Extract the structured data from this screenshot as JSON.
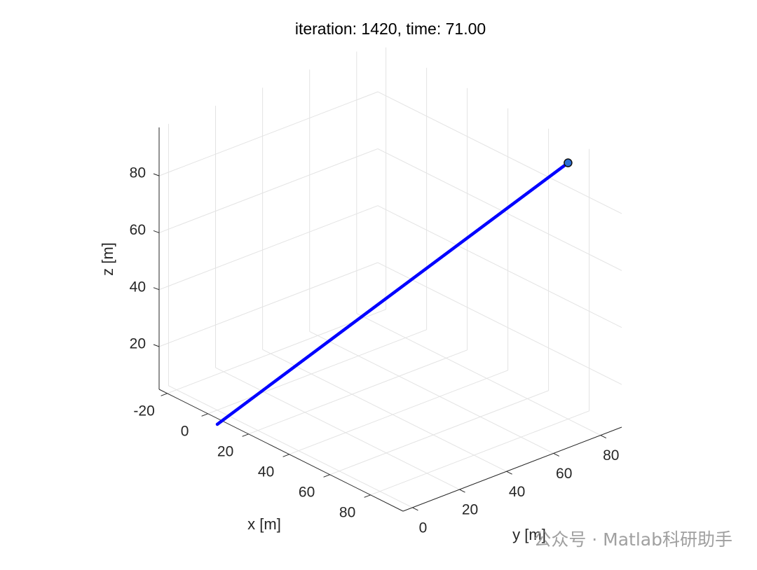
{
  "chart_data": {
    "type": "line3d",
    "title": "iteration: 1420, time: 71.00",
    "xlabel": "x [m]",
    "ylabel": "y [m]",
    "zlabel": "z [m]",
    "xlim": [
      -24,
      96
    ],
    "ylim": [
      -4,
      89
    ],
    "zlim": [
      5,
      97
    ],
    "xticks": [
      -20,
      0,
      20,
      40,
      60,
      80
    ],
    "yticks": [
      0,
      20,
      40,
      60,
      80
    ],
    "zticks": [
      20,
      40,
      60,
      80
    ],
    "grid": true,
    "series": [
      {
        "color": "#0000ff",
        "x": [
          0,
          80
        ],
        "y": [
          0,
          80
        ],
        "z": [
          0,
          95
        ]
      }
    ],
    "marker": {
      "x": 80,
      "y": 80,
      "z": 95,
      "color": "#2b6fd6"
    },
    "watermark": "公众号 · Matlab科研助手"
  }
}
